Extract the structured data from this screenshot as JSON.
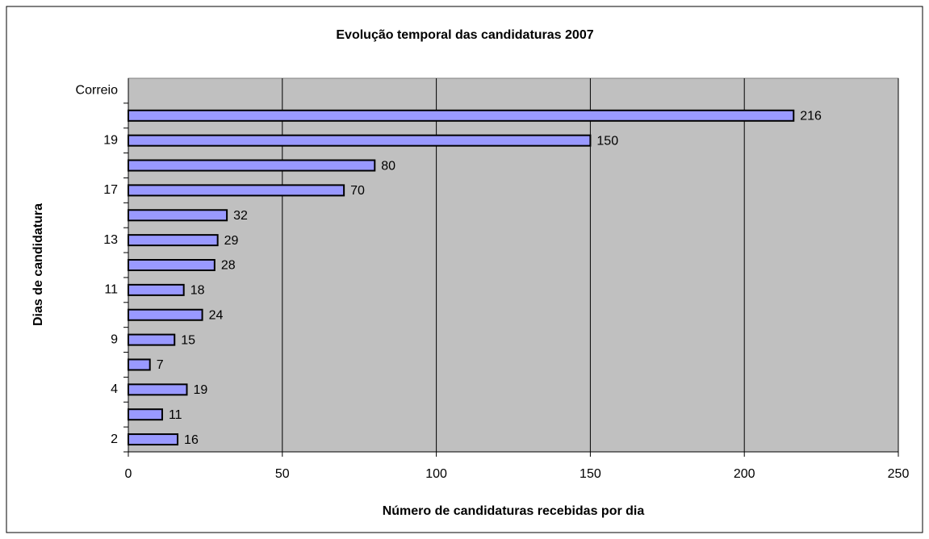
{
  "chart_data": {
    "type": "bar",
    "orientation": "horizontal",
    "title": "Evolução temporal das candidaturas 2007",
    "x_label": "Número de candidaturas recebidas por dia",
    "y_label": "Dias de candidatura",
    "categories": [
      "2",
      null,
      "4",
      null,
      "9",
      null,
      "11",
      null,
      "13",
      null,
      "17",
      null,
      "19",
      null,
      "Correio"
    ],
    "values": [
      16,
      11,
      19,
      7,
      15,
      24,
      18,
      28,
      29,
      32,
      70,
      80,
      150,
      216,
      null
    ],
    "color": "#9999ff",
    "xlim": [
      0,
      250
    ],
    "xticks": [
      0,
      50,
      100,
      150,
      200,
      250
    ],
    "grid": true
  }
}
